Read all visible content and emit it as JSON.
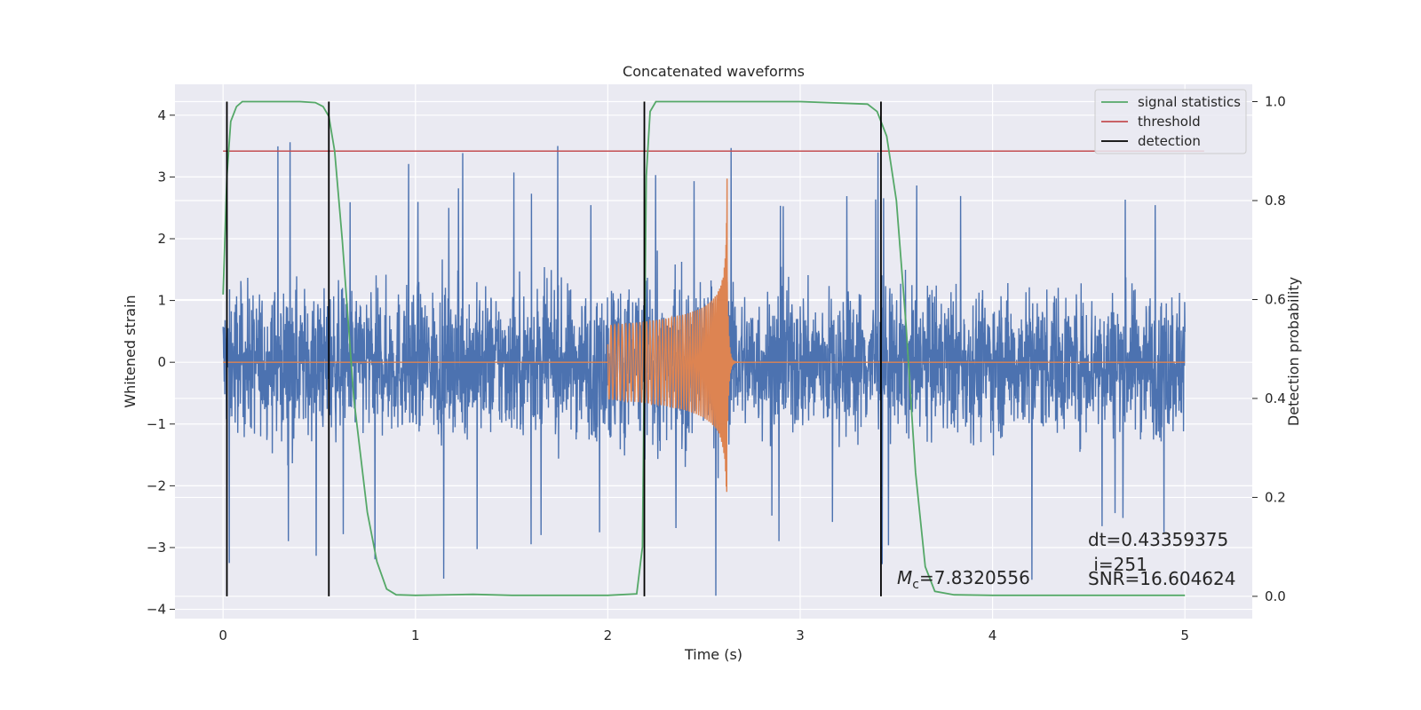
{
  "chart_data": {
    "type": "line",
    "title": "Concatenated waveforms",
    "xlabel": "Time (s)",
    "ylabel": "Whitened strain",
    "y2label": "Detection probability",
    "xlim": [
      -0.25,
      5.35
    ],
    "ylim": [
      -4.15,
      4.5
    ],
    "y2lim": [
      -0.045,
      1.035
    ],
    "xticks": [
      "0",
      "1",
      "2",
      "3",
      "4",
      "5"
    ],
    "yticks": [
      "−4",
      "−3",
      "−2",
      "−1",
      "0",
      "1",
      "2",
      "3",
      "4"
    ],
    "y2ticks": [
      "0.0",
      "0.2",
      "0.4",
      "0.6",
      "0.8",
      "1.0"
    ],
    "grid": true,
    "legend_position": "top-right",
    "legend": [
      "signal statistics",
      "threshold",
      "detection"
    ],
    "colors": {
      "noise": "#4c72b0",
      "template": "#dd8452",
      "signal_statistics": "#55a868",
      "threshold": "#c44e52",
      "detection": "#000000",
      "background": "#eaeaf2"
    },
    "noise": {
      "x_range": [
        0,
        5
      ],
      "typical_amplitude": 1.5,
      "peak_amplitude": 3.6
    },
    "template": {
      "start": 2.0,
      "merger": 2.62,
      "ringdown_end": 2.7,
      "start_amplitude": 0.6,
      "peak_positive": 3.0,
      "peak_negative": -2.1
    },
    "signal_statistics": {
      "x": [
        0,
        0.02,
        0.04,
        0.07,
        0.1,
        0.2,
        0.3,
        0.4,
        0.48,
        0.52,
        0.55,
        0.58,
        0.62,
        0.68,
        0.75,
        0.8,
        0.85,
        0.9,
        1.0,
        1.3,
        1.5,
        2.0,
        2.15,
        2.18,
        2.2,
        2.22,
        2.25,
        2.3,
        2.5,
        3.0,
        3.35,
        3.4,
        3.45,
        3.5,
        3.55,
        3.6,
        3.65,
        3.7,
        3.8,
        4.0,
        5.0
      ],
      "y": [
        0.61,
        0.85,
        0.96,
        0.99,
        1.0,
        1.0,
        1.0,
        1.0,
        0.998,
        0.99,
        0.97,
        0.9,
        0.72,
        0.4,
        0.17,
        0.07,
        0.015,
        0.003,
        0.002,
        0.004,
        0.002,
        0.002,
        0.005,
        0.1,
        0.85,
        0.98,
        1.0,
        1.0,
        1.0,
        1.0,
        0.995,
        0.98,
        0.93,
        0.8,
        0.55,
        0.25,
        0.06,
        0.01,
        0.003,
        0.002,
        0.002
      ]
    },
    "threshold": {
      "x": [
        0,
        5.1
      ],
      "y": 0.9
    },
    "detections": [
      0.02,
      0.55,
      2.19,
      3.42
    ],
    "annotations": {
      "mc": "=7.8320556",
      "mc_symbol_main": "M",
      "mc_symbol_sub": "c",
      "dt": "dt=0.43359375",
      "i": " i=251",
      "snr": "SNR=16.604624"
    }
  }
}
